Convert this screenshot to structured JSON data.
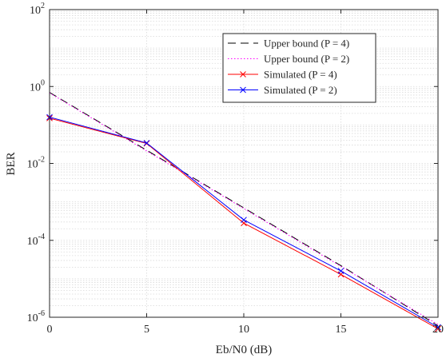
{
  "chart_data": {
    "type": "line",
    "xlabel": "Eb/N0 (dB)",
    "ylabel": "BER",
    "xlim": [
      0,
      20
    ],
    "ylim": [
      1e-06,
      100
    ],
    "y_scale": "log",
    "grid": true,
    "minor_grid": true,
    "legend_position": "top-right",
    "x_ticks": [
      {
        "value": 0,
        "label": "0"
      },
      {
        "value": 5,
        "label": "5"
      },
      {
        "value": 10,
        "label": "10"
      },
      {
        "value": 15,
        "label": "15"
      },
      {
        "value": 20,
        "label": "20"
      }
    ],
    "y_ticks": [
      {
        "value": 1e-06,
        "base": "10",
        "exp": "-6"
      },
      {
        "value": 0.0001,
        "base": "10",
        "exp": "-4"
      },
      {
        "value": 0.01,
        "base": "10",
        "exp": "-2"
      },
      {
        "value": 1,
        "base": "10",
        "exp": "0"
      },
      {
        "value": 100,
        "base": "10",
        "exp": "2"
      }
    ],
    "series": [
      {
        "name": "Upper bound (P = 4)",
        "color": "#000000",
        "style": "dashed",
        "marker": "none",
        "x": [
          0,
          5,
          10,
          15,
          20
        ],
        "y": [
          0.7,
          0.022,
          0.0007,
          2.2e-05,
          6e-07
        ]
      },
      {
        "name": "Upper bound (P = 2)",
        "color": "#ff00ff",
        "style": "dotted",
        "marker": "none",
        "x": [
          0,
          5,
          10,
          15,
          20
        ],
        "y": [
          0.68,
          0.021,
          0.00067,
          2.1e-05,
          6.5e-07
        ]
      },
      {
        "name": "Simulated (P = 4)",
        "color": "#ff0000",
        "style": "solid",
        "marker": "x",
        "x": [
          0,
          5,
          10,
          15,
          20
        ],
        "y": [
          0.15,
          0.033,
          0.00028,
          1.3e-05,
          5e-07
        ]
      },
      {
        "name": "Simulated (P = 2)",
        "color": "#0000ff",
        "style": "solid",
        "marker": "x",
        "x": [
          0,
          5,
          10,
          15,
          20
        ],
        "y": [
          0.16,
          0.034,
          0.00034,
          1.6e-05,
          5.5e-07
        ]
      }
    ]
  }
}
